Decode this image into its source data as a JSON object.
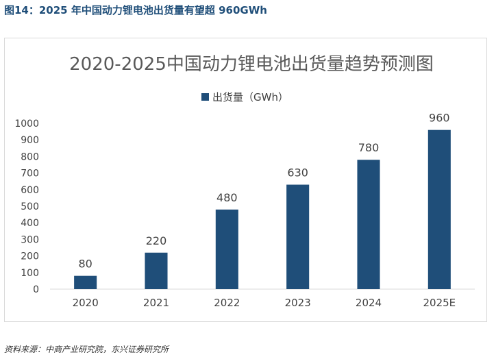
{
  "figure_caption": "图14：2025 年中国动力锂电池出货量有望超 960GWh",
  "source_note": "资料来源：中商产业研究院，东兴证券研究所",
  "colors": {
    "caption": "#1f4e79",
    "bar": "#1f4e79",
    "title": "#595959",
    "axis_text": "#404040",
    "data_label": "#404040"
  },
  "chart_data": {
    "type": "bar",
    "title": "2020-2025中国动力锂电池出货量趋势预测图",
    "categories": [
      "2020",
      "2021",
      "2022",
      "2023",
      "2024",
      "2025E"
    ],
    "series": [
      {
        "name": "出货量（GWh）",
        "values": [
          80,
          220,
          480,
          630,
          780,
          960
        ]
      }
    ],
    "data_labels": [
      "80",
      "220",
      "480",
      "630",
      "780",
      "960"
    ],
    "y_ticks": [
      "0",
      "100",
      "200",
      "300",
      "400",
      "500",
      "600",
      "700",
      "800",
      "900",
      "1000"
    ],
    "ylim": [
      0,
      1000
    ],
    "grid": false,
    "legend": "top-center"
  }
}
